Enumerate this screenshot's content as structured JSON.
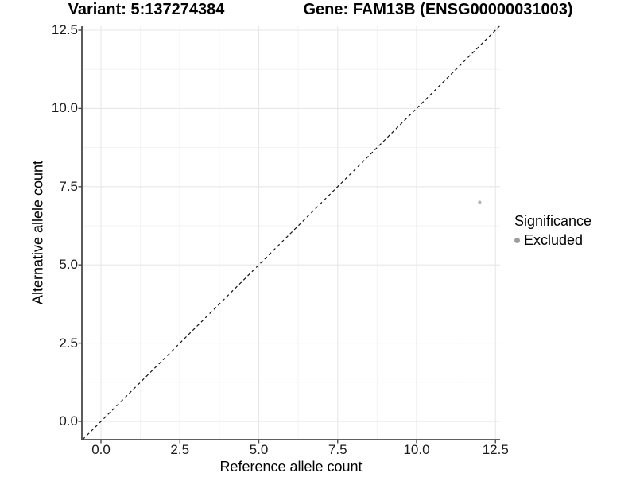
{
  "titles": {
    "variant": "Variant: 5:137274384",
    "gene": "Gene: FAM13B (ENSG00000031003)"
  },
  "chart_data": {
    "type": "scatter",
    "title_left": "Variant: 5:137274384",
    "title_right": "Gene: FAM13B (ENSG00000031003)",
    "xlabel": "Reference allele count",
    "ylabel": "Alternative allele count",
    "xlim": [
      -0.605,
      12.645
    ],
    "ylim": [
      -0.584,
      12.627
    ],
    "x_ticks": {
      "values": [
        0,
        2.5,
        5,
        7.5,
        10,
        12.5
      ],
      "labels": [
        "0.0",
        "2.5",
        "5.0",
        "7.5",
        "10.0",
        "12.5"
      ]
    },
    "y_ticks": {
      "values": [
        0,
        2.5,
        5,
        7.5,
        10,
        12.5
      ],
      "labels": [
        "0.0",
        "2.5",
        "5.0",
        "7.5",
        "10.0",
        "12.5"
      ]
    },
    "minor_ticks": [
      1.25,
      3.75,
      6.25,
      8.75,
      11.25
    ],
    "grid": true,
    "reference_line": {
      "type": "identity",
      "style": "dashed",
      "color": "#111111"
    },
    "series": [
      {
        "name": "Excluded",
        "color": "#b4b4b4",
        "points": [
          {
            "x": 12,
            "y": 7
          }
        ]
      }
    ],
    "legend": {
      "title": "Significance",
      "position": "right",
      "entries": [
        {
          "label": "Excluded",
          "color": "#9e9e9e"
        }
      ]
    },
    "colors": {
      "background": "#ffffff",
      "axis_line": "#4a4a4a",
      "tick_mark": "#4a4a4a",
      "grid_major": "#e7e7e7",
      "grid_minor": "#f3f3f3",
      "text": "#000000"
    }
  }
}
